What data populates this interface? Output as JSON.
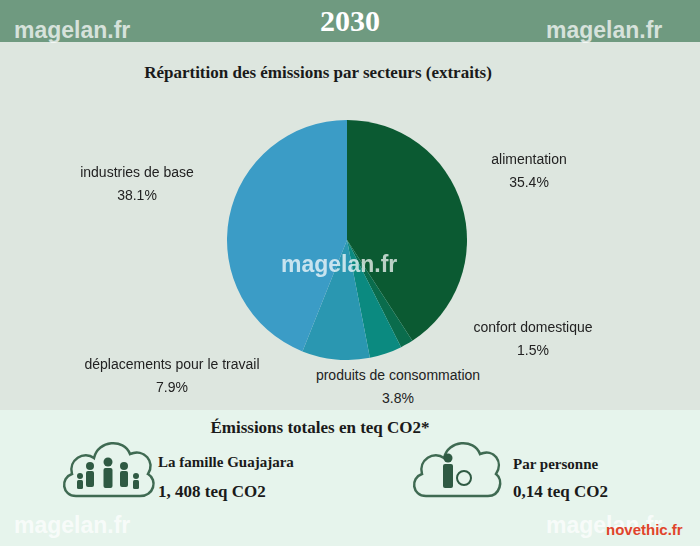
{
  "header": {
    "title": "2030"
  },
  "watermark": "magelan.fr",
  "chart_data": {
    "type": "pie",
    "title": "Répartition des émissions par secteurs (extraits)",
    "categories": [
      "alimentation",
      "confort domestique",
      "produits de consommation",
      "déplacements pour le travail",
      "industries de base"
    ],
    "values": [
      35.4,
      1.5,
      3.8,
      7.9,
      38.1
    ],
    "value_labels": [
      "35.4%",
      "1.5%",
      "3.8%",
      "7.9%",
      "38.1%"
    ],
    "colors": [
      "#0b5a32",
      "#0a6c4c",
      "#0b8a80",
      "#2a97b1",
      "#3b9cc6"
    ],
    "data_labels": true
  },
  "totals": {
    "title": "Émissions totales en teq CO2*",
    "items": [
      {
        "label": "La famille Guajajara",
        "value": "1, 408 teq CO2"
      },
      {
        "label": "Par personne",
        "value": "0,14 teq CO2"
      }
    ]
  },
  "source": "novethic.fr"
}
